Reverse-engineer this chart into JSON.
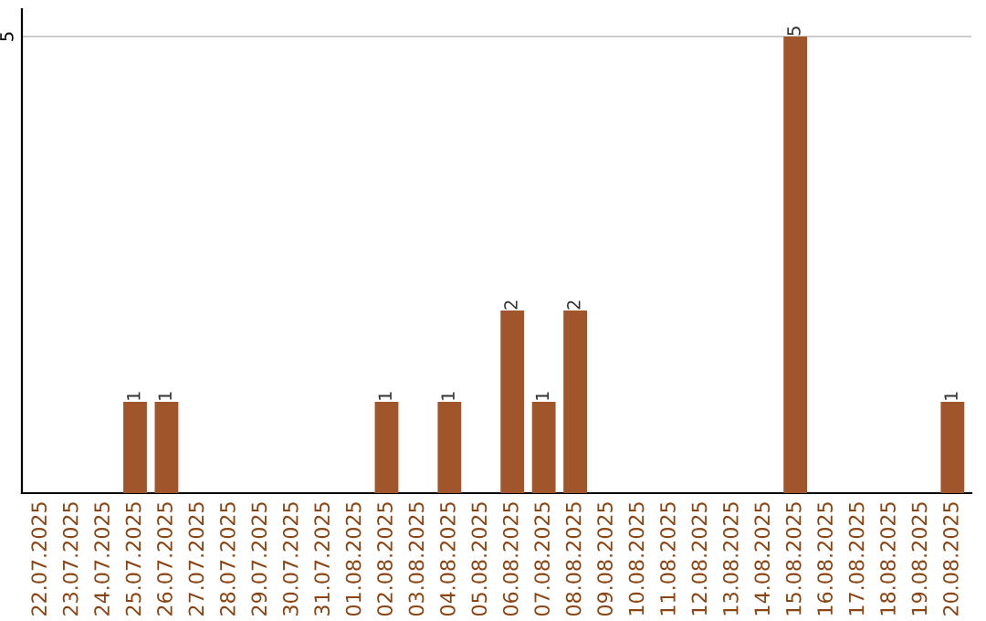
{
  "chart_data": {
    "type": "bar",
    "categories": [
      "22.07.2025",
      "23.07.2025",
      "24.07.2025",
      "25.07.2025",
      "26.07.2025",
      "27.07.2025",
      "28.07.2025",
      "29.07.2025",
      "30.07.2025",
      "31.07.2025",
      "01.08.2025",
      "02.08.2025",
      "03.08.2025",
      "04.08.2025",
      "05.08.2025",
      "06.08.2025",
      "07.08.2025",
      "08.08.2025",
      "09.08.2025",
      "10.08.2025",
      "11.08.2025",
      "12.08.2025",
      "13.08.2025",
      "14.08.2025",
      "15.08.2025",
      "16.08.2025",
      "17.08.2025",
      "18.08.2025",
      "19.08.2025",
      "20.08.2025"
    ],
    "values": [
      0,
      0,
      0,
      1,
      1,
      0,
      0,
      0,
      0,
      0,
      0,
      1,
      0,
      1,
      0,
      2,
      1,
      2,
      0,
      0,
      0,
      0,
      0,
      0,
      5,
      0,
      0,
      0,
      0,
      1
    ],
    "color": "#a0552a",
    "value_labels": [
      null,
      null,
      null,
      "1",
      "1",
      null,
      null,
      null,
      null,
      null,
      null,
      "1",
      null,
      "1",
      null,
      "2",
      "1",
      "2",
      null,
      null,
      null,
      null,
      null,
      null,
      "5",
      null,
      null,
      null,
      null,
      "1"
    ],
    "ylim": [
      0,
      5.3
    ],
    "yticks": [
      5
    ],
    "grid": "y"
  }
}
